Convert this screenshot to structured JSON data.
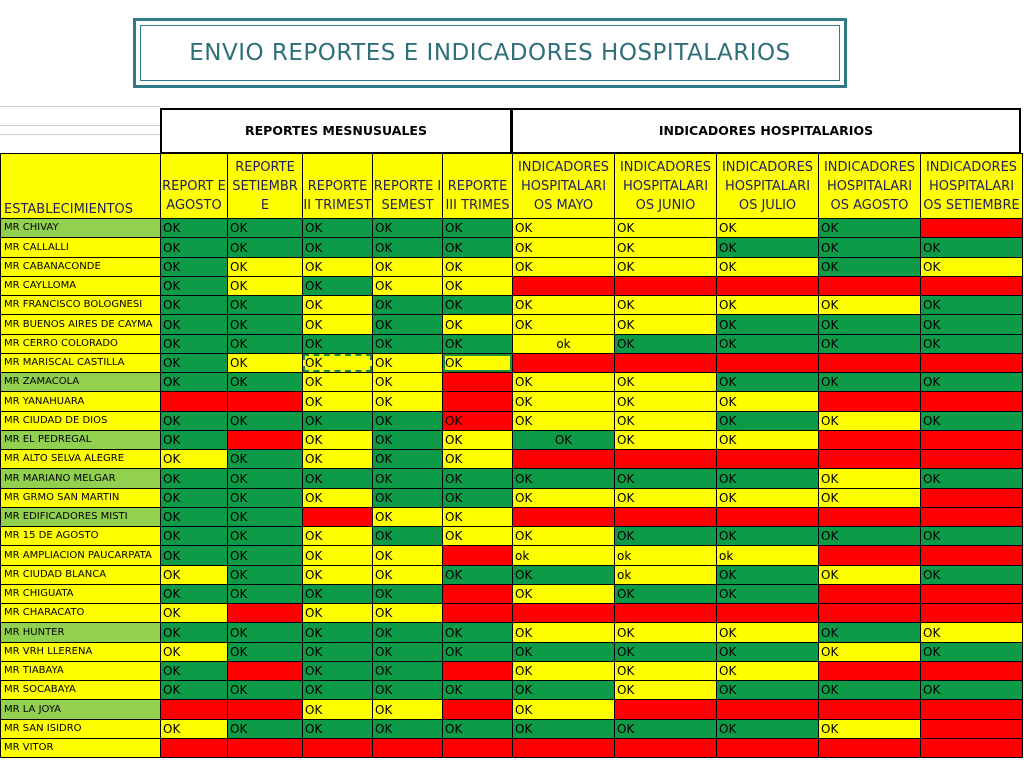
{
  "title": "ENVIO REPORTES E INDICADORES HOSPITALARIOS",
  "group_headers": [
    "REPORTES MESNUSUALES",
    "INDICADORES HOSPITALARIOS"
  ],
  "establishments_header": "ESTABLECIMIENTOS",
  "columns": [
    "REPORT E AGOSTO",
    "REPORTE SETIEMBR E",
    "REPORTE II TRIMEST",
    "REPORTE I SEMEST",
    "REPORTE III TRIMES",
    "INDICADORES HOSPITALARI OS MAYO",
    "INDICADORES HOSPITALARI OS JUNIO",
    "INDICADORES HOSPITALARI OS JULIO",
    "INDICADORES HOSPITALARI OS AGOSTO",
    "INDICADORES HOSPITALARI OS SETIEMBRE"
  ],
  "colors": {
    "green": "#0e9b47",
    "yellow": "#ffff00",
    "red": "#ff0000",
    "light_green": "#92d050",
    "title": "#2f6f7a"
  },
  "rows": [
    {
      "name": "MR CHIVAY",
      "bg": "l",
      "cells": [
        [
          "OK",
          "g"
        ],
        [
          "OK",
          "g"
        ],
        [
          "OK",
          "g"
        ],
        [
          "OK",
          "g"
        ],
        [
          "OK",
          "g"
        ],
        [
          "OK",
          "y"
        ],
        [
          "OK",
          "y"
        ],
        [
          "OK",
          "y"
        ],
        [
          "OK",
          "g"
        ],
        [
          "",
          "r"
        ]
      ]
    },
    {
      "name": "MR CALLALLI",
      "bg": "y",
      "cells": [
        [
          "OK",
          "g"
        ],
        [
          "OK",
          "g"
        ],
        [
          "OK",
          "g"
        ],
        [
          "OK",
          "g"
        ],
        [
          "OK",
          "g"
        ],
        [
          "OK",
          "y"
        ],
        [
          "OK",
          "y"
        ],
        [
          "OK",
          "g"
        ],
        [
          "OK",
          "g"
        ],
        [
          "OK",
          "g"
        ]
      ]
    },
    {
      "name": "MR CABANACONDE",
      "bg": "y",
      "cells": [
        [
          "OK",
          "g"
        ],
        [
          "OK",
          "y"
        ],
        [
          "OK",
          "y"
        ],
        [
          "OK",
          "y"
        ],
        [
          "OK",
          "y"
        ],
        [
          "OK",
          "y"
        ],
        [
          "OK",
          "y"
        ],
        [
          "OK",
          "y"
        ],
        [
          "OK",
          "g"
        ],
        [
          "OK",
          "y"
        ]
      ]
    },
    {
      "name": "MR CAYLLOMA",
      "bg": "y",
      "cells": [
        [
          "OK",
          "g"
        ],
        [
          "OK",
          "y"
        ],
        [
          "OK",
          "g"
        ],
        [
          "OK",
          "y"
        ],
        [
          "OK",
          "y"
        ],
        [
          "",
          "r"
        ],
        [
          "",
          "r"
        ],
        [
          "",
          "r"
        ],
        [
          "",
          "r"
        ],
        [
          "",
          "r"
        ]
      ]
    },
    {
      "name": "MR FRANCISCO BOLOGNESI",
      "bg": "y",
      "cells": [
        [
          "OK",
          "g"
        ],
        [
          "OK",
          "g"
        ],
        [
          "OK",
          "y"
        ],
        [
          "OK",
          "g"
        ],
        [
          "OK",
          "g"
        ],
        [
          "OK",
          "y"
        ],
        [
          "OK",
          "y"
        ],
        [
          "OK",
          "y"
        ],
        [
          "OK",
          "y"
        ],
        [
          "OK",
          "g"
        ]
      ]
    },
    {
      "name": "MR BUENOS AIRES DE CAYMA",
      "bg": "y",
      "cells": [
        [
          "OK",
          "g"
        ],
        [
          "OK",
          "g"
        ],
        [
          "OK",
          "y"
        ],
        [
          "OK",
          "g"
        ],
        [
          "OK",
          "y"
        ],
        [
          "OK",
          "y"
        ],
        [
          "OK",
          "y"
        ],
        [
          "OK",
          "g"
        ],
        [
          "OK",
          "g"
        ],
        [
          "OK",
          "g"
        ]
      ]
    },
    {
      "name": "MR CERRO COLORADO",
      "bg": "y",
      "cells": [
        [
          "OK",
          "g"
        ],
        [
          "OK",
          "g"
        ],
        [
          "OK",
          "g"
        ],
        [
          "OK",
          "g"
        ],
        [
          "OK",
          "g"
        ],
        [
          "ok",
          "y",
          "c"
        ],
        [
          "OK",
          "g"
        ],
        [
          "OK",
          "g"
        ],
        [
          "OK",
          "g"
        ],
        [
          "OK",
          "g"
        ]
      ]
    },
    {
      "name": "MR MARISCAL CASTILLA",
      "bg": "y",
      "cells": [
        [
          "OK",
          "g"
        ],
        [
          "OK",
          "y"
        ],
        [
          "OK",
          "y",
          "sel"
        ],
        [
          "OK",
          "y"
        ],
        [
          "OK",
          "y",
          "selw"
        ],
        [
          "",
          "r"
        ],
        [
          "",
          "r"
        ],
        [
          "",
          "r"
        ],
        [
          "",
          "r"
        ],
        [
          "",
          "r"
        ]
      ]
    },
    {
      "name": "MR ZAMACOLA",
      "bg": "l",
      "cells": [
        [
          "OK",
          "g"
        ],
        [
          "OK",
          "g"
        ],
        [
          "OK",
          "y"
        ],
        [
          "OK",
          "y"
        ],
        [
          "",
          "r"
        ],
        [
          "OK",
          "y"
        ],
        [
          "OK",
          "y"
        ],
        [
          "OK",
          "g"
        ],
        [
          "OK",
          "g"
        ],
        [
          "OK",
          "g"
        ]
      ]
    },
    {
      "name": "MR YANAHUARA",
      "bg": "y",
      "cells": [
        [
          "",
          "r"
        ],
        [
          "",
          "r"
        ],
        [
          "OK",
          "y"
        ],
        [
          "OK",
          "y"
        ],
        [
          "",
          "r"
        ],
        [
          "OK",
          "y"
        ],
        [
          "OK",
          "y"
        ],
        [
          "OK",
          "y"
        ],
        [
          "",
          "r"
        ],
        [
          "",
          "r"
        ]
      ]
    },
    {
      "name": "MR CIUDAD DE DIOS",
      "bg": "y",
      "cells": [
        [
          "OK",
          "g"
        ],
        [
          "OK",
          "g"
        ],
        [
          "OK",
          "g"
        ],
        [
          "OK",
          "g"
        ],
        [
          "OK",
          "r"
        ],
        [
          "OK",
          "y"
        ],
        [
          "OK",
          "y"
        ],
        [
          "OK",
          "g"
        ],
        [
          "OK",
          "y"
        ],
        [
          "OK",
          "g"
        ]
      ]
    },
    {
      "name": "MR EL PEDREGAL",
      "bg": "l",
      "cells": [
        [
          "OK",
          "g"
        ],
        [
          "",
          "r"
        ],
        [
          "OK",
          "y"
        ],
        [
          "OK",
          "g"
        ],
        [
          "OK",
          "y"
        ],
        [
          "OK",
          "g",
          "c"
        ],
        [
          "OK",
          "y"
        ],
        [
          "OK",
          "y"
        ],
        [
          "",
          "r"
        ],
        [
          "",
          "r"
        ]
      ]
    },
    {
      "name": "MR ALTO SELVA ALEGRE",
      "bg": "y",
      "cells": [
        [
          "OK",
          "y"
        ],
        [
          "OK",
          "g"
        ],
        [
          "OK",
          "y"
        ],
        [
          "OK",
          "g"
        ],
        [
          "OK",
          "y"
        ],
        [
          "",
          "r"
        ],
        [
          "",
          "r"
        ],
        [
          "",
          "r"
        ],
        [
          "",
          "r"
        ],
        [
          "",
          "r"
        ]
      ]
    },
    {
      "name": "MR MARIANO MELGAR",
      "bg": "l",
      "cells": [
        [
          "OK",
          "g"
        ],
        [
          "OK",
          "g"
        ],
        [
          "OK",
          "g"
        ],
        [
          "OK",
          "g"
        ],
        [
          "OK",
          "g"
        ],
        [
          "OK",
          "g"
        ],
        [
          "OK",
          "g"
        ],
        [
          "OK",
          "g"
        ],
        [
          "OK",
          "y"
        ],
        [
          "OK",
          "g"
        ]
      ]
    },
    {
      "name": "MR GRMO SAN MARTIN",
      "bg": "y",
      "cells": [
        [
          "OK",
          "g"
        ],
        [
          "OK",
          "g"
        ],
        [
          "OK",
          "y"
        ],
        [
          "OK",
          "g"
        ],
        [
          "OK",
          "g"
        ],
        [
          "OK",
          "y"
        ],
        [
          "OK",
          "y"
        ],
        [
          "OK",
          "y"
        ],
        [
          "OK",
          "y"
        ],
        [
          "",
          "r"
        ]
      ]
    },
    {
      "name": "MR EDIFICADORES MISTI",
      "bg": "l",
      "cells": [
        [
          "OK",
          "g"
        ],
        [
          "OK",
          "g"
        ],
        [
          "",
          "r"
        ],
        [
          "OK",
          "y"
        ],
        [
          "OK",
          "y"
        ],
        [
          "",
          "r"
        ],
        [
          "",
          "r"
        ],
        [
          "",
          "r"
        ],
        [
          "",
          "r"
        ],
        [
          "",
          "r"
        ]
      ]
    },
    {
      "name": "MR 15 DE AGOSTO",
      "bg": "y",
      "cells": [
        [
          "OK",
          "g"
        ],
        [
          "OK",
          "g"
        ],
        [
          "OK",
          "y"
        ],
        [
          "OK",
          "g"
        ],
        [
          "OK",
          "y"
        ],
        [
          "OK",
          "y"
        ],
        [
          "OK",
          "g"
        ],
        [
          "OK",
          "g"
        ],
        [
          "OK",
          "g"
        ],
        [
          "OK",
          "g"
        ]
      ]
    },
    {
      "name": "MR AMPLIACION PAUCARPATA",
      "bg": "y",
      "cells": [
        [
          "OK",
          "g"
        ],
        [
          "OK",
          "g"
        ],
        [
          "OK",
          "y"
        ],
        [
          "OK",
          "y"
        ],
        [
          "",
          "r"
        ],
        [
          "ok",
          "y"
        ],
        [
          "ok",
          "y"
        ],
        [
          "ok",
          "y"
        ],
        [
          "",
          "r"
        ],
        [
          "",
          "r"
        ]
      ]
    },
    {
      "name": "MR CIUDAD BLANCA",
      "bg": "y",
      "cells": [
        [
          "OK",
          "y"
        ],
        [
          "OK",
          "g"
        ],
        [
          "OK",
          "y"
        ],
        [
          "OK",
          "y"
        ],
        [
          "OK",
          "g"
        ],
        [
          "OK",
          "g"
        ],
        [
          "ok",
          "y"
        ],
        [
          "OK",
          "g"
        ],
        [
          "OK",
          "y"
        ],
        [
          "OK",
          "g"
        ]
      ]
    },
    {
      "name": "MR CHIGUATA",
      "bg": "y",
      "cells": [
        [
          "OK",
          "g"
        ],
        [
          "OK",
          "g"
        ],
        [
          "OK",
          "g"
        ],
        [
          "OK",
          "g"
        ],
        [
          "",
          "r"
        ],
        [
          "OK",
          "y"
        ],
        [
          "OK",
          "g"
        ],
        [
          "OK",
          "g"
        ],
        [
          "",
          "r"
        ],
        [
          "",
          "r"
        ]
      ]
    },
    {
      "name": "MR CHARACATO",
      "bg": "y",
      "cells": [
        [
          "OK",
          "y"
        ],
        [
          "",
          "r"
        ],
        [
          "OK",
          "y"
        ],
        [
          "OK",
          "y"
        ],
        [
          "",
          "r"
        ],
        [
          "",
          "r"
        ],
        [
          "",
          "r"
        ],
        [
          "",
          "r"
        ],
        [
          "",
          "r"
        ],
        [
          "",
          "r"
        ]
      ]
    },
    {
      "name": "MR HUNTER",
      "bg": "l",
      "cells": [
        [
          "OK",
          "g"
        ],
        [
          "OK",
          "g"
        ],
        [
          "OK",
          "g"
        ],
        [
          "OK",
          "g"
        ],
        [
          "OK",
          "g"
        ],
        [
          "OK",
          "y"
        ],
        [
          "OK",
          "y"
        ],
        [
          "OK",
          "y"
        ],
        [
          "OK",
          "g"
        ],
        [
          "OK",
          "y"
        ]
      ]
    },
    {
      "name": "MR VRH LLERENA",
      "bg": "y",
      "cells": [
        [
          "OK",
          "y"
        ],
        [
          "OK",
          "g"
        ],
        [
          "OK",
          "g"
        ],
        [
          "OK",
          "g"
        ],
        [
          "OK",
          "g"
        ],
        [
          "OK",
          "g"
        ],
        [
          "OK",
          "g"
        ],
        [
          "OK",
          "g"
        ],
        [
          "OK",
          "y"
        ],
        [
          "OK",
          "g"
        ]
      ]
    },
    {
      "name": "MR TIABAYA",
      "bg": "y",
      "cells": [
        [
          "OK",
          "g"
        ],
        [
          "",
          "r"
        ],
        [
          "OK",
          "g"
        ],
        [
          "OK",
          "g"
        ],
        [
          "",
          "r"
        ],
        [
          "OK",
          "y"
        ],
        [
          "OK",
          "y"
        ],
        [
          "OK",
          "y"
        ],
        [
          "",
          "r"
        ],
        [
          "",
          "r"
        ]
      ]
    },
    {
      "name": "MR SOCABAYA",
      "bg": "y",
      "cells": [
        [
          "OK",
          "g"
        ],
        [
          "OK",
          "g"
        ],
        [
          "OK",
          "g"
        ],
        [
          "OK",
          "g"
        ],
        [
          "OK",
          "g"
        ],
        [
          "OK",
          "g"
        ],
        [
          "OK",
          "y"
        ],
        [
          "OK",
          "g"
        ],
        [
          "OK",
          "g"
        ],
        [
          "OK",
          "g"
        ]
      ]
    },
    {
      "name": "MR LA JOYA",
      "bg": "l",
      "cells": [
        [
          "",
          "r"
        ],
        [
          "",
          "r"
        ],
        [
          "OK",
          "y"
        ],
        [
          "OK",
          "y"
        ],
        [
          "",
          "r"
        ],
        [
          "OK",
          "y"
        ],
        [
          "",
          "r"
        ],
        [
          "",
          "r"
        ],
        [
          "",
          "r"
        ],
        [
          "",
          "r"
        ]
      ]
    },
    {
      "name": "MR SAN ISIDRO",
      "bg": "y",
      "cells": [
        [
          "OK",
          "y"
        ],
        [
          "OK",
          "g"
        ],
        [
          "OK",
          "g"
        ],
        [
          "OK",
          "g"
        ],
        [
          "OK",
          "g"
        ],
        [
          "OK",
          "g"
        ],
        [
          "OK",
          "g"
        ],
        [
          "OK",
          "g"
        ],
        [
          "OK",
          "y"
        ],
        [
          "",
          "r"
        ]
      ]
    },
    {
      "name": "MR VITOR",
      "bg": "y",
      "cells": [
        [
          "",
          "r"
        ],
        [
          "",
          "r"
        ],
        [
          "",
          "r"
        ],
        [
          "",
          "r"
        ],
        [
          "",
          "r"
        ],
        [
          "",
          "r"
        ],
        [
          "",
          "r"
        ],
        [
          "",
          "r"
        ],
        [
          "",
          "r"
        ],
        [
          "",
          "r"
        ]
      ]
    }
  ]
}
